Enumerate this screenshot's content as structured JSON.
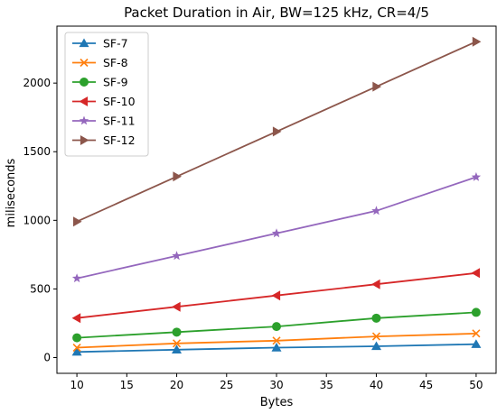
{
  "chart_data": {
    "type": "line",
    "title": "Packet Duration in Air, BW=125 kHz, CR=4/5",
    "xlabel": "Bytes",
    "ylabel": "miliseconds",
    "x": [
      10,
      20,
      30,
      40,
      50
    ],
    "xlim": [
      8,
      52
    ],
    "ylim": [
      -115,
      2415
    ],
    "xticks": [
      10,
      15,
      20,
      25,
      30,
      35,
      40,
      45,
      50
    ],
    "yticks": [
      0,
      500,
      1000,
      1500,
      2000
    ],
    "grid": false,
    "legend_position": "top-left",
    "series": [
      {
        "name": "SF-7",
        "color": "#1f77b4",
        "marker": "triangle-up",
        "values": [
          41,
          57,
          72,
          82,
          97
        ]
      },
      {
        "name": "SF-8",
        "color": "#ff7f0e",
        "marker": "x",
        "values": [
          72,
          103,
          123,
          154,
          175
        ]
      },
      {
        "name": "SF-9",
        "color": "#2ca02c",
        "marker": "circle",
        "values": [
          144,
          185,
          226,
          287,
          329
        ]
      },
      {
        "name": "SF-10",
        "color": "#d62728",
        "marker": "triangle-left",
        "values": [
          288,
          370,
          452,
          534,
          616
        ]
      },
      {
        "name": "SF-11",
        "color": "#9467bd",
        "marker": "star",
        "values": [
          577,
          741,
          905,
          1069,
          1315
        ]
      },
      {
        "name": "SF-12",
        "color": "#8c564b",
        "marker": "triangle-right",
        "values": [
          991,
          1319,
          1647,
          1974,
          2302
        ]
      }
    ]
  }
}
